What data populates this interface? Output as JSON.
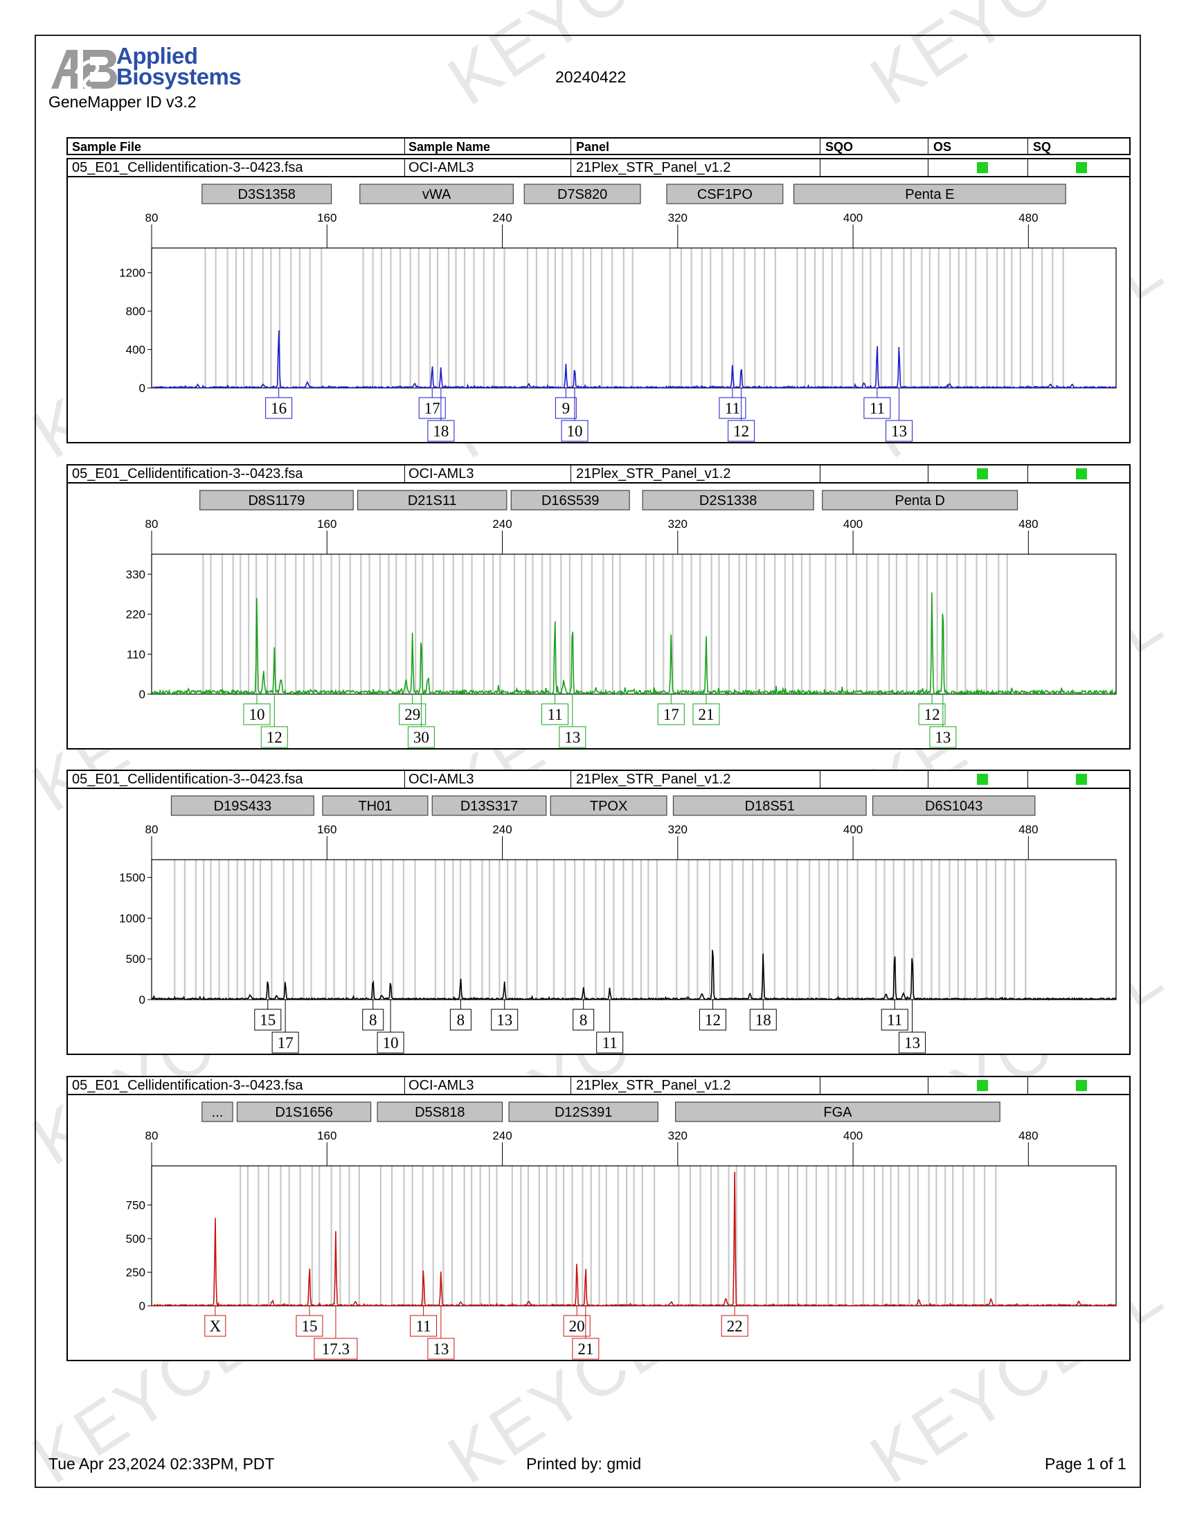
{
  "header": {
    "logo_line1": "Applied",
    "logo_line2": "Biosystems",
    "software": "GeneMapper ID v3.2",
    "run_date": "20240422",
    "columns": [
      "Sample File",
      "Sample Name",
      "Panel",
      "SQO",
      "OS",
      "SQ"
    ]
  },
  "watermark": "KEYCELL",
  "sample": {
    "file": "05_E01_Cellidentification-3--0423.fsa",
    "name": "OCI-AML3",
    "panel": "21Plex_STR_Panel_v1.2",
    "os_color": "#1fd01f",
    "sq_color": "#1fd01f"
  },
  "footer": {
    "date": "Tue Apr 23,2024 02:33PM, PDT",
    "printed_by": "Printed by: gmid",
    "page": "Page 1 of 1"
  },
  "chart_data": [
    {
      "type": "line",
      "dye_color": "#1a1acc",
      "x_ticks": [
        80,
        160,
        240,
        320,
        400,
        480
      ],
      "xlim": [
        80,
        520
      ],
      "ylim": [
        0,
        1400
      ],
      "y_ticks": [
        0,
        400,
        800,
        1200
      ],
      "noise": 14,
      "loci": [
        {
          "name": "D3S1358",
          "start": 103,
          "end": 162
        },
        {
          "name": "vWA",
          "start": 175,
          "end": 245
        },
        {
          "name": "D7S820",
          "start": 250,
          "end": 303
        },
        {
          "name": "CSF1PO",
          "start": 315,
          "end": 368
        },
        {
          "name": "Penta E",
          "start": 373,
          "end": 497
        }
      ],
      "peaks": [
        {
          "x": 138,
          "y": 640,
          "allele": "16"
        },
        {
          "x": 208,
          "y": 230,
          "allele": "17"
        },
        {
          "x": 212,
          "y": 210,
          "allele": "18"
        },
        {
          "x": 269,
          "y": 230,
          "allele": "9"
        },
        {
          "x": 273,
          "y": 220,
          "allele": "10"
        },
        {
          "x": 345,
          "y": 230,
          "allele": "11"
        },
        {
          "x": 349,
          "y": 230,
          "allele": "12"
        },
        {
          "x": 411,
          "y": 470,
          "allele": "11"
        },
        {
          "x": 421,
          "y": 440,
          "allele": "13"
        }
      ],
      "minor_peaks": [
        [
          101,
          30
        ],
        [
          131,
          30
        ],
        [
          151,
          55
        ],
        [
          200,
          40
        ],
        [
          252,
          35
        ],
        [
          405,
          35
        ],
        [
          444,
          35
        ],
        [
          490,
          30
        ],
        [
          500,
          25
        ]
      ]
    },
    {
      "type": "line",
      "dye_color": "#17a317",
      "x_ticks": [
        80,
        160,
        240,
        320,
        400,
        480
      ],
      "xlim": [
        80,
        520
      ],
      "ylim": [
        0,
        370
      ],
      "y_ticks": [
        0,
        110,
        220,
        330
      ],
      "noise": 10,
      "loci": [
        {
          "name": "D8S1179",
          "start": 102,
          "end": 172
        },
        {
          "name": "D21S11",
          "start": 174,
          "end": 242
        },
        {
          "name": "D16S539",
          "start": 244,
          "end": 298
        },
        {
          "name": "D2S1338",
          "start": 304,
          "end": 382
        },
        {
          "name": "Penta D",
          "start": 386,
          "end": 475
        }
      ],
      "peaks": [
        {
          "x": 128,
          "y": 265,
          "allele": "10"
        },
        {
          "x": 136,
          "y": 120,
          "allele": "12"
        },
        {
          "x": 199,
          "y": 160,
          "allele": "29"
        },
        {
          "x": 203,
          "y": 165,
          "allele": "30"
        },
        {
          "x": 264,
          "y": 215,
          "allele": "11"
        },
        {
          "x": 272,
          "y": 200,
          "allele": "13"
        },
        {
          "x": 317,
          "y": 165,
          "allele": "17"
        },
        {
          "x": 333,
          "y": 155,
          "allele": "21"
        },
        {
          "x": 436,
          "y": 285,
          "allele": "12"
        },
        {
          "x": 441,
          "y": 265,
          "allele": "13"
        }
      ],
      "minor_peaks": [
        [
          131,
          45
        ],
        [
          139,
          40
        ],
        [
          196,
          35
        ],
        [
          206,
          35
        ],
        [
          268,
          30
        ]
      ]
    },
    {
      "type": "line",
      "dye_color": "#000000",
      "x_ticks": [
        80,
        160,
        240,
        320,
        400,
        480
      ],
      "xlim": [
        80,
        520
      ],
      "ylim": [
        0,
        1650
      ],
      "y_ticks": [
        0,
        500,
        1000,
        1500
      ],
      "noise": 18,
      "loci": [
        {
          "name": "D19S433",
          "start": 89,
          "end": 154
        },
        {
          "name": "TH01",
          "start": 158,
          "end": 206
        },
        {
          "name": "D13S317",
          "start": 208,
          "end": 260
        },
        {
          "name": "TPOX",
          "start": 262,
          "end": 315
        },
        {
          "name": "D18S51",
          "start": 318,
          "end": 406
        },
        {
          "name": "D6S1043",
          "start": 409,
          "end": 483
        }
      ],
      "peaks": [
        {
          "x": 133,
          "y": 250,
          "allele": "15"
        },
        {
          "x": 141,
          "y": 230,
          "allele": "17"
        },
        {
          "x": 181,
          "y": 240,
          "allele": "8"
        },
        {
          "x": 189,
          "y": 230,
          "allele": "10"
        },
        {
          "x": 221,
          "y": 260,
          "allele": "8"
        },
        {
          "x": 241,
          "y": 220,
          "allele": "13"
        },
        {
          "x": 277,
          "y": 140,
          "allele": "8"
        },
        {
          "x": 289,
          "y": 130,
          "allele": "11"
        },
        {
          "x": 336,
          "y": 720,
          "allele": "12"
        },
        {
          "x": 359,
          "y": 560,
          "allele": "18"
        },
        {
          "x": 419,
          "y": 620,
          "allele": "11"
        },
        {
          "x": 427,
          "y": 600,
          "allele": "13"
        }
      ],
      "minor_peaks": [
        [
          125,
          45
        ],
        [
          137,
          40
        ],
        [
          185,
          45
        ],
        [
          331,
          60
        ],
        [
          353,
          60
        ],
        [
          415,
          55
        ],
        [
          423,
          60
        ]
      ]
    },
    {
      "type": "line",
      "dye_color": "#cc1111",
      "x_ticks": [
        80,
        160,
        240,
        320,
        400,
        480
      ],
      "xlim": [
        80,
        520
      ],
      "ylim": [
        0,
        1000
      ],
      "y_ticks": [
        0,
        250,
        500,
        750
      ],
      "noise": 8,
      "loci": [
        {
          "name": "...",
          "start": 103,
          "end": 117
        },
        {
          "name": "D1S1656",
          "start": 119,
          "end": 180
        },
        {
          "name": "D5S818",
          "start": 183,
          "end": 240
        },
        {
          "name": "D12S391",
          "start": 243,
          "end": 311
        },
        {
          "name": "FGA",
          "start": 319,
          "end": 467
        }
      ],
      "peaks": [
        {
          "x": 109,
          "y": 660,
          "allele": "X"
        },
        {
          "x": 152,
          "y": 300,
          "allele": "15"
        },
        {
          "x": 164,
          "y": 550,
          "allele": "17.3"
        },
        {
          "x": 204,
          "y": 280,
          "allele": "11"
        },
        {
          "x": 212,
          "y": 255,
          "allele": "13"
        },
        {
          "x": 274,
          "y": 335,
          "allele": "20"
        },
        {
          "x": 278,
          "y": 290,
          "allele": "21"
        },
        {
          "x": 346,
          "y": 990,
          "allele": "22"
        }
      ],
      "minor_peaks": [
        [
          135,
          30
        ],
        [
          173,
          25
        ],
        [
          221,
          25
        ],
        [
          252,
          30
        ],
        [
          317,
          25
        ],
        [
          342,
          50
        ],
        [
          430,
          40
        ],
        [
          463,
          45
        ],
        [
          503,
          30
        ]
      ]
    }
  ]
}
